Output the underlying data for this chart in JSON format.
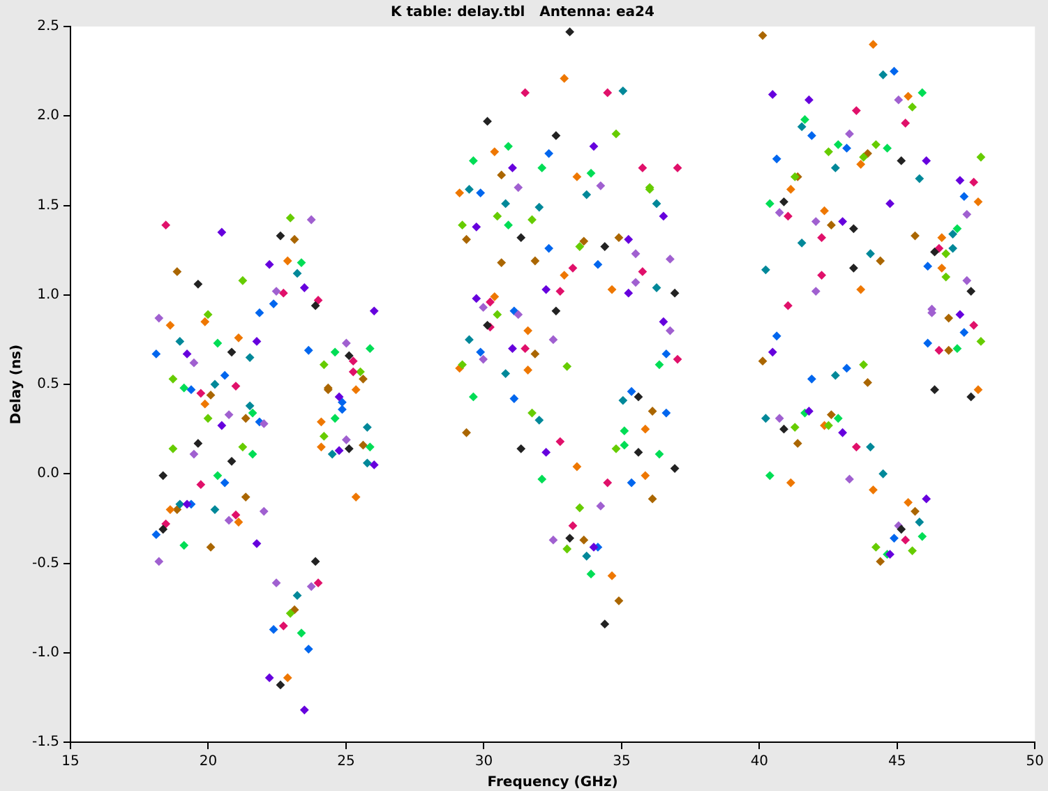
{
  "chart_data": {
    "type": "scatter",
    "title": "K table: delay.tbl   Antenna: ea24",
    "xlabel": "Frequency (GHz)",
    "ylabel": "Delay (ns)",
    "xlim": [
      15,
      50
    ],
    "xticks": [
      15,
      20,
      25,
      30,
      35,
      40,
      45,
      50
    ],
    "ylim": [
      -1.5,
      2.5
    ],
    "yticks": [
      -1.5,
      {
        "value": -1,
        "label": "-1.0"
      },
      -0.5,
      {
        "value": 0,
        "label": "0.0"
      },
      0.5,
      {
        "value": 1,
        "label": "1.0"
      },
      1.5,
      {
        "value": 2,
        "label": "2.0"
      },
      2.5
    ],
    "grid": false,
    "legend": false,
    "marker": "diamond",
    "series": [
      {
        "color": "#222222",
        "x": [
          22.62,
          19.63,
          23.89,
          20.85,
          25.11,
          19.63,
          25.11,
          18.36,
          20.85,
          18.36,
          23.89,
          22.62,
          33.12,
          30.13,
          32.62,
          31.35,
          34.39,
          36.93,
          32.62,
          30.13,
          35.61,
          35.61,
          31.35,
          36.93,
          33.12,
          34.39,
          45.15,
          40.89,
          43.42,
          46.36,
          47.68,
          43.42,
          46.36,
          47.68,
          40.89,
          45.15
        ],
        "values": [
          1.33,
          1.06,
          0.94,
          0.68,
          0.66,
          0.17,
          0.14,
          -0.01,
          0.07,
          -0.31,
          -0.49,
          -1.18,
          2.47,
          1.97,
          1.89,
          1.32,
          1.27,
          1.01,
          0.91,
          0.83,
          0.43,
          0.12,
          0.14,
          0.03,
          -0.36,
          -0.84,
          1.75,
          1.52,
          1.37,
          1.24,
          1.02,
          1.15,
          0.47,
          0.43,
          0.25,
          -0.31
        ]
      },
      {
        "color": "#e0106a",
        "x": [
          18.46,
          22.73,
          23.99,
          25.26,
          25.26,
          19.73,
          21.0,
          19.73,
          21.0,
          18.46,
          23.99,
          22.73,
          31.5,
          34.49,
          35.76,
          37.03,
          33.23,
          35.76,
          32.77,
          30.23,
          30.23,
          31.5,
          37.03,
          32.77,
          34.49,
          33.23,
          43.52,
          45.3,
          47.78,
          41.04,
          42.26,
          46.52,
          42.26,
          41.04,
          47.78,
          46.52,
          43.52,
          45.3
        ],
        "values": [
          1.39,
          1.01,
          0.97,
          0.63,
          0.57,
          0.45,
          0.49,
          -0.06,
          -0.23,
          -0.28,
          -0.61,
          -0.85,
          2.13,
          2.13,
          1.71,
          1.71,
          1.15,
          1.13,
          1.02,
          0.96,
          0.82,
          0.7,
          0.64,
          0.18,
          -0.05,
          -0.29,
          2.03,
          1.96,
          1.63,
          1.44,
          1.32,
          1.26,
          1.11,
          0.94,
          0.83,
          0.69,
          0.15,
          -0.37
        ]
      },
      {
        "color": "#6600dd",
        "x": [
          20.49,
          22.22,
          23.49,
          26.02,
          21.76,
          19.23,
          24.75,
          20.49,
          24.75,
          26.02,
          19.23,
          21.76,
          22.22,
          23.49,
          33.99,
          31.04,
          29.73,
          36.52,
          35.25,
          32.26,
          35.25,
          29.73,
          36.52,
          31.04,
          32.26,
          33.99,
          40.48,
          41.8,
          46.06,
          47.28,
          44.74,
          43.02,
          47.28,
          40.48,
          41.8,
          43.02,
          46.06,
          44.74
        ],
        "values": [
          1.35,
          1.17,
          1.04,
          0.91,
          0.74,
          0.67,
          0.43,
          0.27,
          0.13,
          0.05,
          -0.17,
          -0.39,
          -1.14,
          -1.32,
          1.83,
          1.71,
          1.38,
          1.44,
          1.31,
          1.03,
          1.01,
          0.98,
          0.85,
          0.7,
          0.12,
          -0.41,
          2.12,
          2.09,
          1.75,
          1.64,
          1.51,
          1.41,
          0.89,
          0.68,
          0.35,
          0.23,
          -0.14,
          -0.45
        ]
      },
      {
        "color": "#a060d0",
        "x": [
          23.74,
          22.47,
          18.21,
          25.01,
          19.48,
          20.75,
          22.02,
          25.01,
          19.48,
          20.75,
          22.02,
          18.21,
          22.47,
          23.74,
          31.25,
          34.24,
          35.51,
          36.76,
          35.51,
          29.98,
          31.25,
          32.52,
          36.76,
          29.98,
          34.24,
          32.52,
          45.05,
          43.27,
          40.73,
          42.05,
          47.53,
          47.53,
          42.05,
          46.26,
          46.26,
          40.73,
          43.27,
          45.05
        ],
        "values": [
          1.42,
          1.02,
          0.87,
          0.73,
          0.62,
          0.33,
          0.28,
          0.19,
          0.11,
          -0.26,
          -0.21,
          -0.49,
          -0.61,
          -0.63,
          1.6,
          1.61,
          1.23,
          1.2,
          1.07,
          0.93,
          0.89,
          0.75,
          0.8,
          0.64,
          -0.18,
          -0.37,
          2.09,
          1.9,
          1.46,
          1.41,
          1.45,
          1.08,
          1.02,
          0.92,
          0.9,
          0.31,
          -0.03,
          -0.29
        ]
      },
      {
        "color": "#0066ee",
        "x": [
          22.37,
          21.86,
          18.11,
          23.64,
          20.6,
          19.38,
          24.86,
          24.86,
          21.86,
          20.6,
          19.38,
          18.11,
          22.37,
          23.64,
          32.36,
          29.88,
          32.36,
          34.14,
          31.1,
          29.88,
          36.62,
          31.1,
          35.36,
          36.62,
          35.36,
          34.14,
          44.89,
          41.9,
          43.17,
          40.63,
          47.43,
          46.11,
          40.63,
          47.43,
          46.11,
          41.9,
          43.17,
          44.89
        ],
        "values": [
          0.95,
          0.9,
          0.67,
          0.69,
          0.55,
          0.47,
          0.4,
          0.36,
          0.29,
          -0.05,
          -0.17,
          -0.34,
          -0.87,
          -0.98,
          1.79,
          1.57,
          1.26,
          1.17,
          0.91,
          0.68,
          0.67,
          0.42,
          0.46,
          0.34,
          -0.05,
          -0.41,
          2.25,
          1.89,
          1.82,
          1.76,
          1.55,
          1.16,
          0.77,
          0.79,
          0.73,
          0.53,
          0.59,
          -0.36
        ]
      },
      {
        "color": "#008899",
        "x": [
          23.23,
          18.97,
          21.51,
          20.24,
          21.51,
          25.77,
          24.5,
          25.77,
          18.97,
          20.24,
          23.23,
          35.05,
          29.47,
          33.73,
          30.79,
          32.01,
          36.27,
          36.27,
          29.47,
          30.79,
          35.05,
          32.01,
          33.73,
          44.49,
          41.54,
          42.76,
          45.81,
          47.02,
          47.02,
          41.54,
          44.03,
          40.23,
          42.76,
          40.23,
          44.03,
          44.49,
          45.81
        ],
        "values": [
          1.12,
          0.74,
          0.65,
          0.5,
          0.38,
          0.26,
          0.11,
          0.06,
          -0.17,
          -0.2,
          -0.68,
          2.14,
          1.59,
          1.56,
          1.51,
          1.49,
          1.51,
          1.04,
          0.75,
          0.56,
          0.41,
          0.3,
          -0.46,
          2.23,
          1.94,
          1.71,
          1.65,
          1.34,
          1.26,
          1.29,
          1.23,
          1.14,
          0.55,
          0.31,
          0.15,
          0.0,
          -0.27
        ]
      },
      {
        "color": "#00dd55",
        "x": [
          23.38,
          20.34,
          24.6,
          25.87,
          19.12,
          21.61,
          24.6,
          25.87,
          21.61,
          20.34,
          19.12,
          23.38,
          30.89,
          29.62,
          32.11,
          33.89,
          30.89,
          36.37,
          29.62,
          35.1,
          35.1,
          36.37,
          32.11,
          33.89,
          45.91,
          41.65,
          42.86,
          44.64,
          40.38,
          47.18,
          47.18,
          41.65,
          42.86,
          40.38,
          45.91,
          44.64
        ],
        "values": [
          1.18,
          0.73,
          0.68,
          0.7,
          0.48,
          0.34,
          0.31,
          0.15,
          0.11,
          -0.01,
          -0.4,
          -0.89,
          1.83,
          1.75,
          1.71,
          1.68,
          1.39,
          0.61,
          0.43,
          0.24,
          0.16,
          0.11,
          -0.03,
          -0.56,
          2.13,
          1.98,
          1.84,
          1.82,
          1.51,
          1.37,
          0.7,
          0.34,
          0.31,
          -0.01,
          -0.35,
          -0.45
        ]
      },
      {
        "color": "#66cc00",
        "x": [
          22.98,
          21.25,
          19.99,
          24.2,
          18.72,
          25.52,
          19.99,
          24.2,
          18.72,
          21.25,
          22.98,
          34.8,
          36.02,
          36.02,
          29.22,
          30.49,
          31.75,
          33.48,
          30.49,
          29.22,
          33.02,
          31.75,
          34.8,
          33.48,
          33.02,
          45.55,
          42.51,
          44.23,
          43.78,
          48.04,
          41.29,
          46.77,
          46.77,
          48.04,
          43.78,
          41.29,
          42.51,
          44.23,
          45.55
        ],
        "values": [
          1.43,
          1.08,
          0.89,
          0.61,
          0.53,
          0.57,
          0.31,
          0.21,
          0.14,
          0.15,
          -0.78,
          1.9,
          1.6,
          1.59,
          1.39,
          1.44,
          1.42,
          1.27,
          0.89,
          0.61,
          0.6,
          0.34,
          0.14,
          -0.19,
          -0.42,
          2.05,
          1.8,
          1.84,
          1.77,
          1.77,
          1.66,
          1.23,
          1.1,
          0.74,
          0.61,
          0.26,
          0.27,
          -0.41,
          -0.43
        ]
      },
      {
        "color": "#ee7700",
        "x": [
          22.88,
          19.88,
          18.62,
          21.1,
          25.36,
          19.88,
          24.1,
          24.1,
          25.36,
          18.62,
          21.1,
          22.88,
          32.92,
          30.39,
          33.38,
          29.12,
          32.92,
          34.65,
          30.39,
          31.6,
          29.12,
          31.6,
          35.86,
          33.38,
          35.86,
          34.65,
          44.13,
          45.4,
          43.68,
          41.14,
          47.94,
          42.36,
          46.62,
          46.62,
          43.68,
          47.94,
          42.36,
          41.14,
          44.13,
          45.4
        ],
        "values": [
          1.19,
          0.85,
          0.83,
          0.76,
          0.47,
          0.39,
          0.29,
          0.15,
          -0.13,
          -0.2,
          -0.27,
          -1.14,
          2.21,
          1.8,
          1.66,
          1.57,
          1.11,
          1.03,
          0.99,
          0.8,
          0.59,
          0.58,
          0.25,
          0.04,
          -0.01,
          -0.57,
          2.4,
          2.11,
          1.73,
          1.59,
          1.52,
          1.47,
          1.32,
          1.15,
          1.03,
          0.47,
          0.27,
          -0.05,
          -0.09,
          -0.16
        ]
      },
      {
        "color": "#aa6600",
        "x": [
          23.13,
          18.87,
          25.62,
          24.35,
          24.35,
          20.09,
          21.36,
          25.62,
          21.36,
          18.87,
          20.09,
          23.13,
          30.64,
          29.37,
          33.63,
          34.9,
          30.64,
          31.86,
          31.86,
          36.12,
          29.37,
          36.12,
          33.63,
          34.9,
          40.12,
          43.93,
          41.39,
          42.61,
          45.65,
          44.39,
          46.87,
          46.87,
          40.12,
          43.93,
          42.61,
          41.39,
          45.65,
          44.39
        ],
        "values": [
          1.31,
          1.13,
          0.53,
          0.48,
          0.47,
          0.44,
          0.31,
          0.16,
          -0.13,
          -0.2,
          -0.41,
          -0.76,
          1.67,
          1.31,
          1.3,
          1.32,
          1.18,
          1.19,
          0.67,
          0.35,
          0.23,
          -0.14,
          -0.37,
          -0.71,
          2.45,
          1.79,
          1.66,
          1.39,
          1.33,
          1.19,
          0.87,
          0.69,
          0.63,
          0.51,
          0.33,
          0.17,
          -0.21,
          -0.49
        ]
      }
    ]
  }
}
